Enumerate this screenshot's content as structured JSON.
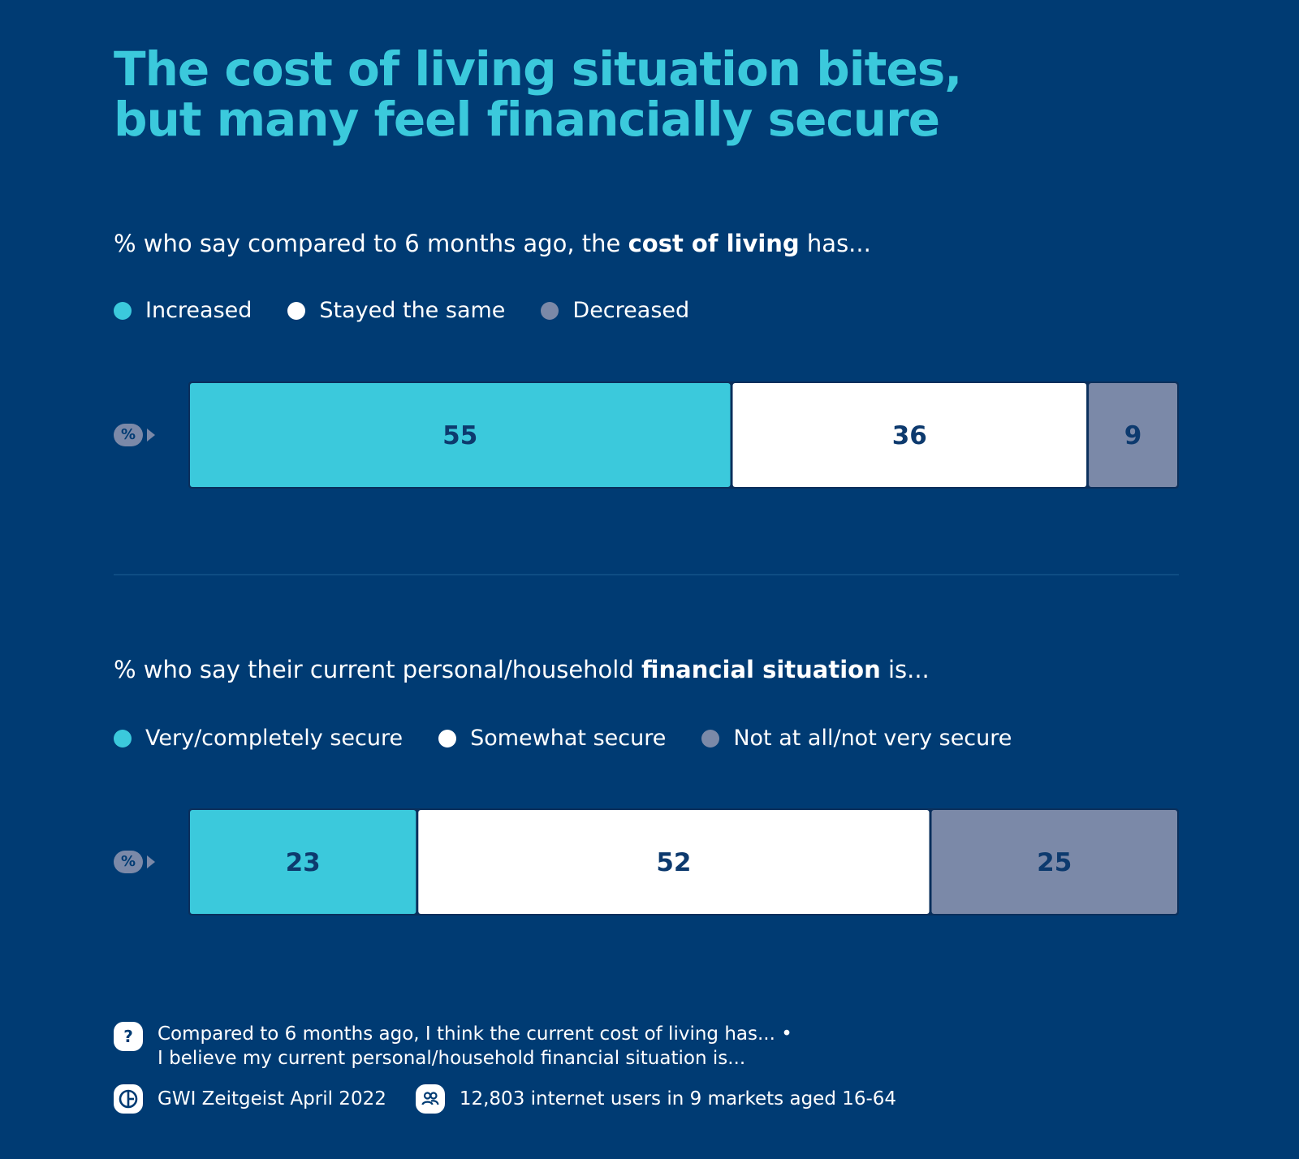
{
  "title": {
    "line1": "The cost of living situation bites,",
    "line2": "but many feel financially secure"
  },
  "section1": {
    "subtitle_pre": "% who say compared to 6 months ago, the ",
    "subtitle_bold": "cost of living",
    "subtitle_post": " has...",
    "legend": [
      "Increased",
      "Stayed the same",
      "Decreased"
    ]
  },
  "section2": {
    "subtitle_pre": "% who say their current personal/household ",
    "subtitle_bold": "financial situation",
    "subtitle_post": " is...",
    "legend": [
      "Very/completely secure",
      "Somewhat secure",
      "Not at all/not very secure"
    ]
  },
  "pct_badge": "%",
  "colors": {
    "background": "#003b73",
    "teal": "#3bc9dc",
    "white": "#ffffff",
    "grey": "#7b89a8",
    "label": "#0d3a6e"
  },
  "chart_data": [
    {
      "type": "bar",
      "orientation": "horizontal-stacked-100",
      "unit": "%",
      "categories": [
        "%"
      ],
      "series": [
        {
          "name": "Increased",
          "values": [
            55
          ],
          "color": "#3bc9dc"
        },
        {
          "name": "Stayed the same",
          "values": [
            36
          ],
          "color": "#ffffff"
        },
        {
          "name": "Decreased",
          "values": [
            9
          ],
          "color": "#7b89a8"
        }
      ]
    },
    {
      "type": "bar",
      "orientation": "horizontal-stacked-100",
      "unit": "%",
      "categories": [
        "%"
      ],
      "series": [
        {
          "name": "Very/completely secure",
          "values": [
            23
          ],
          "color": "#3bc9dc"
        },
        {
          "name": "Somewhat secure",
          "values": [
            52
          ],
          "color": "#ffffff"
        },
        {
          "name": "Not at all/not very secure",
          "values": [
            25
          ],
          "color": "#7b89a8"
        }
      ]
    }
  ],
  "footer": {
    "question_icon": "?",
    "question_line1": "Compared to 6 months ago, I think the current cost of living has... •",
    "question_line2": "I believe my current personal/household financial situation is...",
    "source_icon": "gwi-logo-icon",
    "source": "GWI Zeitgeist April 2022",
    "audience_icon": "people-icon",
    "audience": "12,803 internet users in 9 markets aged 16-64"
  }
}
